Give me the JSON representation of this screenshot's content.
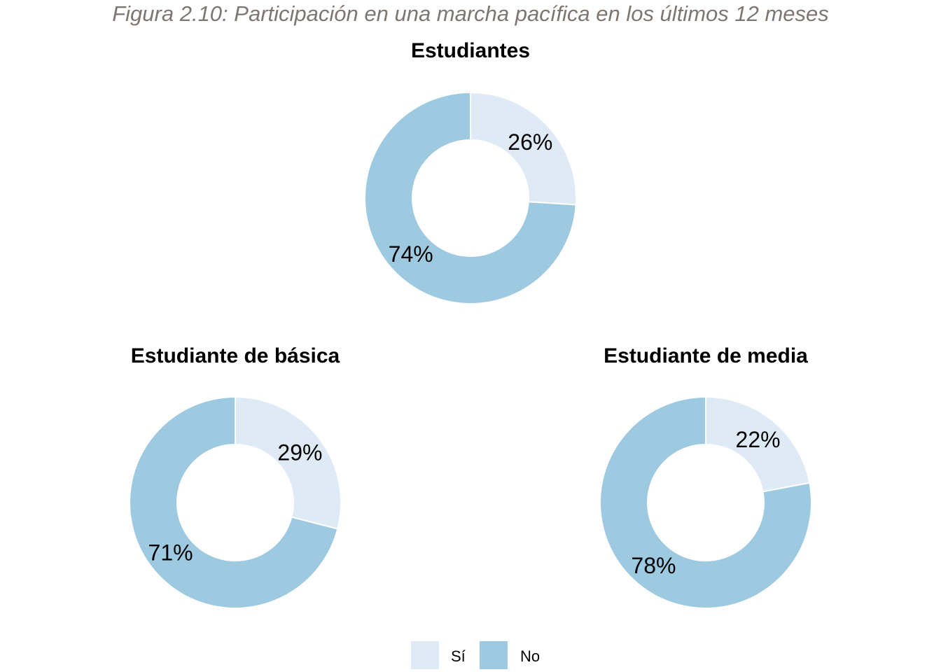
{
  "figure_title": "Figura 2.10:  Participación en una marcha pacífica en los últimos 12 meses",
  "chart_data": [
    {
      "type": "pie",
      "style": "donut",
      "title": "Estudiantes",
      "categories": [
        "Sí",
        "No"
      ],
      "values": [
        26,
        74
      ],
      "labels": [
        "26%",
        "74%"
      ]
    },
    {
      "type": "pie",
      "style": "donut",
      "title": "Estudiante de básica",
      "categories": [
        "Sí",
        "No"
      ],
      "values": [
        29,
        71
      ],
      "labels": [
        "29%",
        "71%"
      ]
    },
    {
      "type": "pie",
      "style": "donut",
      "title": "Estudiante de media",
      "categories": [
        "Sí",
        "No"
      ],
      "values": [
        22,
        78
      ],
      "labels": [
        "22%",
        "78%"
      ]
    }
  ],
  "legend": {
    "position": "bottom",
    "items": [
      {
        "label": "Sí",
        "color": "#deebf7"
      },
      {
        "label": "No",
        "color": "#9ecae1"
      }
    ]
  },
  "colors": {
    "si": "#deebf7",
    "no": "#9ecae1"
  }
}
